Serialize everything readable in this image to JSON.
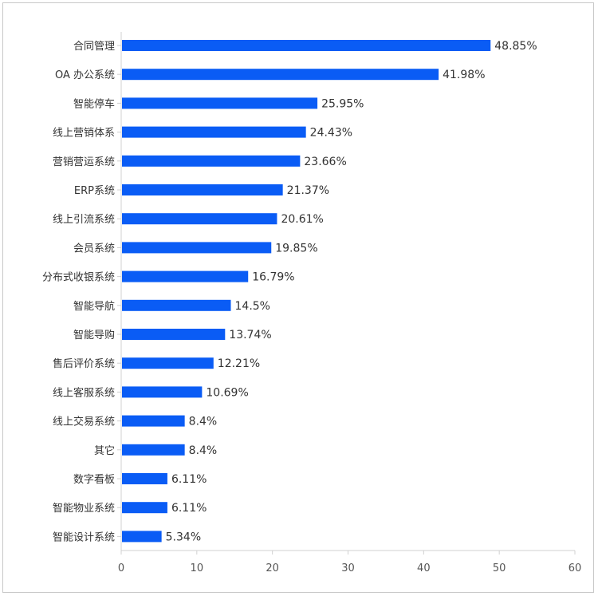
{
  "chart_data": {
    "type": "bar",
    "orientation": "horizontal",
    "categories": [
      "合同管理",
      "OA 办公系统",
      "智能停车",
      "线上营销体系",
      "营销营运系统",
      "ERP系统",
      "线上引流系统",
      "会员系统",
      "分布式收银系统",
      "智能导航",
      "智能导购",
      "售后评价系统",
      "线上客服系统",
      "线上交易系统",
      "其它",
      "数字看板",
      "智能物业系统",
      "智能设计系统"
    ],
    "values": [
      48.85,
      41.98,
      25.95,
      24.43,
      23.66,
      21.37,
      20.61,
      19.85,
      16.79,
      14.5,
      13.74,
      12.21,
      10.69,
      8.4,
      8.4,
      6.11,
      6.11,
      5.34
    ],
    "value_labels": [
      "48.85%",
      "41.98%",
      "25.95%",
      "24.43%",
      "23.66%",
      "21.37%",
      "20.61%",
      "19.85%",
      "16.79%",
      "14.5%",
      "13.74%",
      "12.21%",
      "10.69%",
      "8.4%",
      "8.4%",
      "6.11%",
      "6.11%",
      "5.34%"
    ],
    "xlim": [
      0,
      60
    ],
    "xticks": [
      "0",
      "10",
      "20",
      "30",
      "40",
      "50",
      "60"
    ],
    "grid": false,
    "legend": "none",
    "bar_color": "#0a5cf5"
  }
}
